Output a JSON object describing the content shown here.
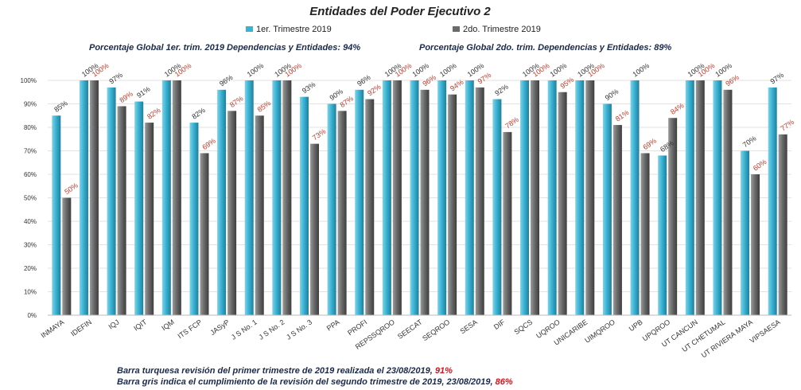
{
  "chart_data": {
    "type": "bar",
    "title": "Entidades del Poder Ejecutivo 2",
    "subtitle_left": "Porcentaje Global 1er. trim. 2019 Dependencias y Entidades: 94%",
    "subtitle_right": "Porcentaje Global  2do. trim. Dependencias y Entidades: 89%",
    "legend_position": "top-center",
    "grid": true,
    "ylim": [
      0,
      100
    ],
    "yticks": [
      "0%",
      "10%",
      "20%",
      "30%",
      "40%",
      "50%",
      "60%",
      "70%",
      "80%",
      "90%",
      "100%"
    ],
    "categories": [
      "INMAYA",
      "IDEFIN",
      "IQJ",
      "IQIT",
      "IQM",
      "ITS FCP",
      "JASyP",
      "J S No. 1",
      "J S No. 2",
      "J S No. 3",
      "PPA",
      "PROFI",
      "REPSSQROO",
      "SEECAT",
      "SEQROO",
      "SESA",
      "DIF",
      "SQCS",
      "UQROO",
      "UNICARIBE",
      "UIMQROO",
      "UPB",
      "UPQROO",
      "UT CANCUN",
      "UT CHETUMAL",
      "UT RIVIERA MAYA",
      "VIPSAESA"
    ],
    "series": [
      {
        "name": "1er. Trimestre 2019",
        "color": "#3ab3d3",
        "values": [
          85,
          100,
          97,
          91,
          100,
          82,
          96,
          100,
          100,
          93,
          90,
          96,
          100,
          100,
          100,
          100,
          92,
          100,
          100,
          100,
          90,
          100,
          68,
          100,
          100,
          70,
          97
        ],
        "labels": [
          "85%",
          "100%",
          "97%",
          "91%",
          "100%",
          "82%",
          "96%",
          "100%",
          "100%",
          "93%",
          "90%",
          "96%",
          "100%",
          "100%",
          "100%",
          "100%",
          "92%",
          "100%",
          "100%",
          "100%",
          "90%",
          "100%",
          "68%",
          "100%",
          "100%",
          "70%",
          "97%"
        ]
      },
      {
        "name": "2do. Trimestre 2019",
        "color": "#6b6b6b",
        "values": [
          50,
          100,
          89,
          82,
          100,
          69,
          87,
          85,
          100,
          73,
          87,
          92,
          100,
          96,
          94,
          97,
          78,
          100,
          95,
          100,
          81,
          69,
          84,
          100,
          96,
          60,
          77
        ],
        "labels": [
          "50%",
          "100%",
          "89%",
          "82%",
          "100%",
          "69%",
          "87%",
          "85%",
          "100%",
          "73%",
          "87%",
          "92%",
          "100%",
          "96%",
          "94%",
          "97%",
          "78%",
          "100%",
          "95%",
          "100%",
          "81%",
          "69%",
          "84%",
          "100%",
          "96%",
          "60%",
          "77%"
        ]
      }
    ]
  },
  "footnotes": {
    "line1_text": "Barra turquesa revisión del primer trimestre de 2019 realizada el  23/08/2019, ",
    "line1_value": "91%",
    "line2_text": "Barra gris indica el cumplimiento de la revisión del segundo trimestre de 2019,  23/08/2019,  ",
    "line2_value": "86%"
  }
}
